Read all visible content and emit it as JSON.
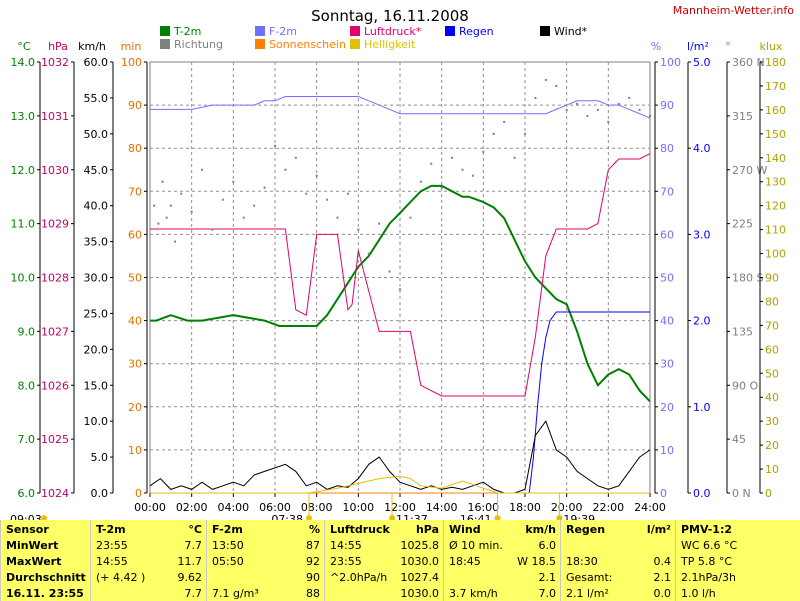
{
  "chart_data": {
    "type": "line",
    "title": "Sonntag, 16.11.2008",
    "brand": "Mannheim-Wetter.info",
    "xlabel": "",
    "x_ticks": [
      "00:00",
      "02:00",
      "04:00",
      "06:00",
      "08:00",
      "10:00",
      "12:00",
      "14:00",
      "16:00",
      "18:00",
      "20:00",
      "22:00",
      "24:00"
    ],
    "xlim": [
      0,
      24
    ],
    "grid": true,
    "legend_placement": "top",
    "legend": [
      {
        "label": "T-2m",
        "color": "#008000"
      },
      {
        "label": "F-2m",
        "color": "#7070ff"
      },
      {
        "label": "Luftdruck*",
        "color": "#e0006e"
      },
      {
        "label": "Regen",
        "color": "#0000ff"
      },
      {
        "label": "Wind*",
        "color": "#000000"
      },
      {
        "label": "Richtung",
        "color": "#808080"
      },
      {
        "label": "Sonnenschein",
        "color": "#ff8000"
      },
      {
        "label": "Helligkeit",
        "color": "#e0c000"
      }
    ],
    "axes": [
      {
        "unit": "°C",
        "ticks": [
          "14.0",
          "13.0",
          "12.0",
          "11.0",
          "10.0",
          "9.0",
          "8.0",
          "7.0",
          "6.0"
        ],
        "range": [
          6,
          14
        ],
        "color": "#008000"
      },
      {
        "unit": "hPa",
        "ticks": [
          "1032",
          "1031",
          "1030",
          "1029",
          "1028",
          "1027",
          "1026",
          "1025",
          "1024"
        ],
        "range": [
          1024,
          1032
        ],
        "color": "#c0006e"
      },
      {
        "unit": "km/h",
        "ticks": [
          "60.0",
          "55.0",
          "50.0",
          "45.0",
          "40.0",
          "35.0",
          "30.0",
          "25.0",
          "20.0",
          "15.0",
          "10.0",
          "5.0",
          "0.0"
        ],
        "range": [
          0,
          60
        ],
        "color": "#000000"
      },
      {
        "unit": "min",
        "ticks": [
          "100",
          "90",
          "80",
          "70",
          "60",
          "50",
          "40",
          "30",
          "20",
          "10",
          "0"
        ],
        "range": [
          0,
          100
        ],
        "color": "#e07000"
      },
      {
        "unit": "%",
        "ticks": [
          "100",
          "90",
          "80",
          "70",
          "60",
          "50",
          "40",
          "30",
          "20",
          "10",
          "0"
        ],
        "range": [
          0,
          100
        ],
        "color": "#7070ff"
      },
      {
        "unit": "l/m²",
        "ticks": [
          "5.0",
          "4.0",
          "3.0",
          "2.0",
          "1.0",
          "0.0"
        ],
        "range": [
          0,
          5
        ],
        "color": "#0000ff"
      },
      {
        "unit": "°",
        "ticks": [
          "360 N",
          "315",
          "270 W",
          "225",
          "180 S",
          "135",
          "90 O",
          "45",
          "0 N"
        ],
        "range": [
          0,
          360
        ],
        "color": "#808080"
      },
      {
        "unit": "klux",
        "ticks": [
          "180",
          "170",
          "160",
          "150",
          "140",
          "130",
          "120",
          "110",
          "100",
          "90",
          "80",
          "70",
          "60",
          "50",
          "40",
          "30",
          "20",
          "10",
          "0"
        ],
        "range": [
          0,
          180
        ],
        "color": "#b0a000"
      }
    ],
    "series": [
      {
        "name": "T-2m",
        "unit": "°C",
        "color": "#008000",
        "x": [
          0,
          0.3,
          1,
          1.8,
          2.5,
          4,
          5.5,
          6.2,
          7,
          7.5,
          8,
          8.5,
          9,
          9.5,
          10,
          10.5,
          11,
          11.5,
          12,
          12.5,
          13,
          13.5,
          14,
          14.5,
          15,
          15.3,
          16,
          16.5,
          17,
          17.5,
          18,
          18.5,
          19,
          19.5,
          20,
          20.5,
          21,
          21.5,
          22,
          22.5,
          23,
          23.5,
          24
        ],
        "y": [
          9.2,
          9.2,
          9.3,
          9.2,
          9.2,
          9.3,
          9.2,
          9.1,
          9.1,
          9.1,
          9.1,
          9.3,
          9.6,
          9.9,
          10.2,
          10.4,
          10.7,
          11.0,
          11.2,
          11.4,
          11.6,
          11.7,
          11.7,
          11.6,
          11.5,
          11.5,
          11.4,
          11.3,
          11.1,
          10.7,
          10.3,
          10.0,
          9.8,
          9.6,
          9.5,
          9.0,
          8.4,
          8.0,
          8.2,
          8.3,
          8.2,
          7.9,
          7.7
        ]
      },
      {
        "name": "F-2m",
        "unit": "%",
        "color": "#7070ff",
        "x": [
          0,
          1,
          2,
          3,
          4,
          5,
          5.5,
          6,
          6.5,
          7,
          8,
          9,
          10,
          10.5,
          11,
          11.5,
          12,
          14,
          15,
          16,
          17,
          18,
          19,
          19.5,
          20,
          20.5,
          21,
          21.5,
          22,
          22.5,
          23,
          23.5,
          24
        ],
        "y": [
          89,
          89,
          89,
          90,
          90,
          90,
          91,
          91,
          92,
          92,
          92,
          92,
          92,
          91,
          90,
          89,
          88,
          88,
          88,
          88,
          88,
          88,
          88,
          89,
          90,
          91,
          91,
          91,
          90,
          90,
          89,
          88,
          87
        ]
      },
      {
        "name": "Luftdruck*",
        "unit": "hPa",
        "color": "#e0006e",
        "x": [
          0,
          2,
          4,
          5,
          6.5,
          7,
          7.5,
          8,
          9,
          9.5,
          9.7,
          10,
          11,
          12,
          12.5,
          13,
          14,
          15,
          16,
          17,
          18,
          18.5,
          19,
          19.5,
          20,
          21,
          21.5,
          22,
          22.5,
          23,
          23.5,
          24
        ],
        "y": [
          1028.9,
          1028.9,
          1028.9,
          1028.9,
          1028.9,
          1027.4,
          1027.3,
          1028.8,
          1028.8,
          1027.4,
          1027.5,
          1028.5,
          1027.0,
          1027.0,
          1027.0,
          1026.0,
          1025.8,
          1025.8,
          1025.8,
          1025.8,
          1025.8,
          1026.9,
          1028.4,
          1028.9,
          1028.9,
          1028.9,
          1029.0,
          1030.0,
          1030.2,
          1030.2,
          1030.2,
          1030.3
        ]
      },
      {
        "name": "Regen",
        "unit": "l/m²",
        "color": "#0000ff",
        "x": [
          0,
          17,
          18,
          18.2,
          18.4,
          18.6,
          18.8,
          19,
          19.2,
          19.5,
          20,
          21,
          22,
          23,
          24
        ],
        "y": [
          0,
          0,
          0,
          0,
          0.4,
          1.0,
          1.5,
          1.8,
          2.0,
          2.1,
          2.1,
          2.1,
          2.1,
          2.1,
          2.1
        ]
      },
      {
        "name": "Wind*",
        "unit": "km/h",
        "color": "#000000",
        "x": [
          0,
          0.5,
          1,
          1.5,
          2,
          2.5,
          3,
          3.5,
          4,
          4.5,
          5,
          5.5,
          6,
          6.5,
          7,
          7.5,
          8,
          8.5,
          9,
          9.5,
          10,
          10.5,
          11,
          11.5,
          12,
          12.5,
          13,
          13.5,
          14,
          14.5,
          15,
          15.5,
          16,
          16.5,
          17,
          17.5,
          18,
          18.5,
          19,
          19.5,
          20,
          20.5,
          21,
          21.5,
          22,
          22.5,
          23,
          23.5,
          24
        ],
        "y": [
          1,
          2,
          0.5,
          1,
          0.5,
          1.5,
          0.5,
          1,
          1.5,
          1,
          2.5,
          3,
          3.5,
          4,
          3,
          1,
          1.5,
          0.5,
          1,
          0.8,
          2,
          4,
          5,
          3,
          1.5,
          1,
          0.5,
          1,
          0.5,
          0.8,
          0.5,
          1,
          1.5,
          0.5,
          0,
          0,
          0.5,
          8,
          10,
          6,
          5,
          3,
          2,
          1,
          0.5,
          1,
          3,
          5,
          6
        ]
      },
      {
        "name": "Richtung",
        "unit": "°",
        "color": "#808080",
        "points": [
          [
            0.2,
            240
          ],
          [
            0.4,
            225
          ],
          [
            0.6,
            260
          ],
          [
            0.8,
            230
          ],
          [
            1,
            240
          ],
          [
            1.2,
            210
          ],
          [
            1.5,
            250
          ],
          [
            2,
            235
          ],
          [
            2.5,
            270
          ],
          [
            3,
            220
          ],
          [
            3.5,
            245
          ],
          [
            4,
            260
          ],
          [
            4.5,
            230
          ],
          [
            5,
            240
          ],
          [
            5.5,
            255
          ],
          [
            6,
            290
          ],
          [
            6.5,
            270
          ],
          [
            7,
            280
          ],
          [
            7.5,
            250
          ],
          [
            8,
            265
          ],
          [
            8.5,
            245
          ],
          [
            9,
            230
          ],
          [
            9.5,
            250
          ],
          [
            10,
            220
          ],
          [
            10.5,
            200
          ],
          [
            11,
            225
          ],
          [
            11.5,
            185
          ],
          [
            12,
            170
          ],
          [
            12.5,
            230
          ],
          [
            13,
            260
          ],
          [
            13.5,
            275
          ],
          [
            14,
            255
          ],
          [
            14.5,
            280
          ],
          [
            15,
            270
          ],
          [
            15.5,
            265
          ],
          [
            16,
            285
          ],
          [
            16.5,
            300
          ],
          [
            17,
            310
          ],
          [
            17.5,
            280
          ],
          [
            18,
            300
          ],
          [
            18.5,
            330
          ],
          [
            19,
            345
          ],
          [
            19.5,
            340
          ],
          [
            20,
            320
          ],
          [
            20.5,
            325
          ],
          [
            21,
            315
          ],
          [
            21.5,
            320
          ],
          [
            22,
            310
          ],
          [
            22.5,
            325
          ],
          [
            23,
            330
          ],
          [
            23.5,
            320
          ],
          [
            24,
            315
          ]
        ]
      },
      {
        "name": "Sonnenschein",
        "unit": "min",
        "color": "#ff8000",
        "x": [
          0,
          8,
          10,
          12,
          14,
          16,
          18,
          20,
          24
        ],
        "y": [
          0,
          0,
          0,
          0,
          0,
          0,
          0,
          0,
          0
        ]
      },
      {
        "name": "Helligkeit",
        "unit": "klux",
        "color": "#e0c000",
        "x": [
          0,
          7.6,
          8,
          9,
          10,
          11,
          12,
          12.5,
          13,
          14,
          15,
          16,
          16.7,
          24
        ],
        "y": [
          0,
          0,
          0.5,
          2,
          4,
          6,
          7,
          6,
          3,
          2,
          5,
          2,
          0,
          0
        ]
      }
    ],
    "markers": {
      "sunrise": "07:38",
      "noon": "11:37",
      "sunset": "16:41",
      "moon": "19:39",
      "moon_left": "09:03"
    }
  },
  "summary_table": {
    "columns": [
      {
        "header": "Sensor",
        "header_unit": "",
        "rows": [
          "MinWert",
          "MaxWert",
          "Durchschnitt",
          "16.11. 23:55"
        ]
      },
      {
        "header": "T-2m",
        "header_unit": "°C",
        "rows": [
          [
            "23:55",
            "7.7"
          ],
          [
            "14:55",
            "11.7"
          ],
          [
            "(+ 4.42 )",
            "9.62"
          ],
          [
            "",
            "7.7"
          ]
        ]
      },
      {
        "header": "F-2m",
        "header_unit": "%",
        "rows": [
          [
            "13:50",
            "87"
          ],
          [
            "05:50",
            "92"
          ],
          [
            "",
            "90"
          ],
          [
            "7.1 g/m³",
            "88"
          ]
        ]
      },
      {
        "header": "Luftdruck",
        "header_unit": "hPa",
        "rows": [
          [
            "14:55",
            "1025.8"
          ],
          [
            "23:55",
            "1030.0"
          ],
          [
            "^2.0hPa/h",
            "1027.4"
          ],
          [
            "",
            "1030.0"
          ]
        ]
      },
      {
        "header": "Wind",
        "header_unit": "km/h",
        "rows": [
          [
            "Ø 10 min.",
            "6.0"
          ],
          [
            "18:45",
            "W 18.5"
          ],
          [
            "",
            "2.1"
          ],
          [
            "3.7 km/h",
            "7.0"
          ]
        ]
      },
      {
        "header": "Regen",
        "header_unit": "l/m²",
        "rows": [
          [
            "",
            ""
          ],
          [
            "18:30",
            "0.4"
          ],
          [
            "Gesamt:",
            "2.1"
          ],
          [
            "2.1 l/m²",
            "0.0"
          ]
        ]
      },
      {
        "header": "PMV-1:2",
        "header_unit": "",
        "rows": [
          "WC 6.6 °C",
          "TP 5.8 °C",
          "2.1hPa/3h",
          "1.0 l/h"
        ]
      }
    ]
  }
}
